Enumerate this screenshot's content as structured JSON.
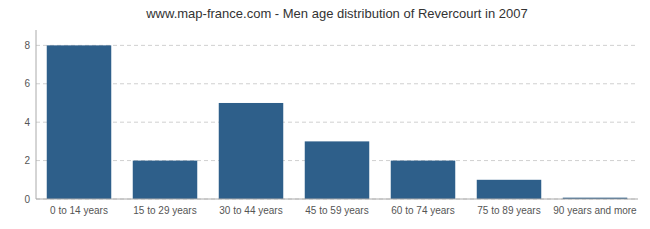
{
  "chart_data": {
    "type": "bar",
    "title": "www.map-france.com - Men age distribution of Revercourt in 2007",
    "categories": [
      "0 to 14 years",
      "15 to 29 years",
      "30 to 44 years",
      "45 to 59 years",
      "60 to 74 years",
      "75 to 89 years",
      "90 years and more"
    ],
    "values": [
      8,
      2,
      5,
      3,
      2,
      1,
      0.07
    ],
    "color": "#2e5f8a",
    "ylim": [
      0,
      8.8
    ],
    "yticks": [
      0,
      2,
      4,
      6,
      8
    ],
    "grid": true
  }
}
